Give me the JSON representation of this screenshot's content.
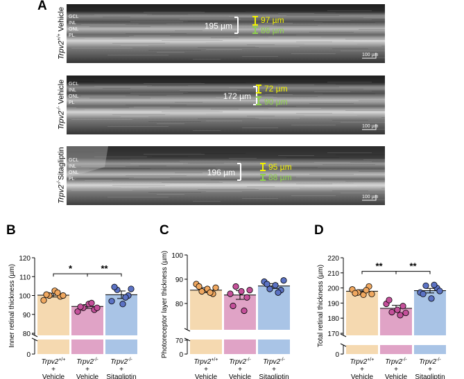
{
  "figure": {
    "panel_a_label": "A",
    "panels": [
      {
        "label_prefix": "Trpv2",
        "label_sup": "+/+",
        "label_suffix": " Vehicle",
        "layers": [
          "GCL",
          "INL",
          "ONL",
          "PL"
        ],
        "total": "195 µm",
        "inner": "97 µm",
        "outer": "86 µm",
        "scale": "100 µm"
      },
      {
        "label_prefix": "Trpv2",
        "label_sup": "-/-",
        "label_suffix": " Vehicle",
        "layers": [
          "GCL",
          "INL",
          "ONL",
          "PL"
        ],
        "total": "172 µm",
        "inner": "72 µm",
        "outer": "90 µm",
        "scale": "100 µm"
      },
      {
        "label_prefix": "Trpv2",
        "label_sup": "-/-",
        "label_suffix": "Sitagliptin",
        "layers": [
          "GCL",
          "INL",
          "ONL",
          "PL"
        ],
        "total": "196 µm",
        "inner": "95 µm",
        "outer": "88 µm",
        "scale": "100 µm"
      }
    ],
    "colors": {
      "inner_bar": "#f2f200",
      "outer_bar": "#8fd14f",
      "vehicle_wt": "#f5d9b0",
      "vehicle_ko": "#e0a3c6",
      "sitagliptin": "#a9c4e6",
      "dot_wt": "#f0a860",
      "dot_ko": "#c4509a",
      "dot_sita": "#5b72c4"
    }
  },
  "chart_data": [
    {
      "panel": "B",
      "type": "bar",
      "ylabel": "Inner retinal thickness (µm)",
      "yticks_upper": [
        "80",
        "90",
        "100",
        "110",
        "120"
      ],
      "ytick_lower": "0",
      "ylim_upper": [
        80,
        120
      ],
      "categories": [
        {
          "name": "Trpv2",
          "sup": "+/+",
          "line2": "+",
          "line3": "Vehicle"
        },
        {
          "name": "Trpv2",
          "sup": "-/-",
          "line2": "+",
          "line3": "Vehicle"
        },
        {
          "name": "Trpv2",
          "sup": "-/-",
          "line2": "+",
          "line3": "Sitagliptin"
        }
      ],
      "values": [
        100.2,
        94.2,
        100.4
      ],
      "sem": [
        1.0,
        1.0,
        2.0
      ],
      "points": [
        [
          97.5,
          100,
          102.5,
          99.5,
          100.5,
          101.5,
          100
        ],
        [
          91.5,
          93.5,
          95.5,
          92.5,
          94,
          96,
          93.5
        ],
        [
          97,
          103,
          95.5,
          100,
          104.5,
          99,
          103.5
        ]
      ],
      "significance": [
        {
          "from": 0,
          "to": 1,
          "label": "*",
          "y": 111.5
        },
        {
          "from": 1,
          "to": 2,
          "label": "**",
          "y": 111.5
        }
      ]
    },
    {
      "panel": "C",
      "type": "bar",
      "ylabel": "Photoreceptor layer thickness (µm)",
      "yticks_upper": [
        "80",
        "90",
        "100"
      ],
      "yticks_lower": [
        "0",
        "70"
      ],
      "ylim_upper": [
        70,
        100
      ],
      "categories": [
        {
          "name": "Trpv2",
          "sup": "+/+",
          "line2": "+",
          "line3": "Vehicle"
        },
        {
          "name": "Trpv2",
          "sup": "-/-",
          "line2": "+",
          "line3": "Vehicle"
        },
        {
          "name": "Trpv2",
          "sup": "-/-",
          "line2": "+",
          "line3": "Sitagliptin"
        }
      ],
      "values": [
        85.5,
        83.5,
        87.2
      ],
      "sem": [
        1.0,
        1.8,
        1.0
      ],
      "points": [
        [
          88,
          85,
          86,
          84,
          87,
          84.5,
          86.5
        ],
        [
          84,
          87,
          85,
          82.5,
          79,
          77,
          85.5
        ],
        [
          89,
          86,
          87.5,
          85.5,
          88,
          84.5,
          89.5
        ]
      ],
      "significance": []
    },
    {
      "panel": "D",
      "type": "bar",
      "ylabel": "Total retinal thickness (µm)",
      "yticks_upper": [
        "170",
        "180",
        "190",
        "200",
        "210",
        "220"
      ],
      "ytick_lower": "0",
      "ylim_upper": [
        170,
        220
      ],
      "categories": [
        {
          "name": "Trpv2",
          "sup": "+/+",
          "line2": "+",
          "line3": "Vehicle"
        },
        {
          "name": "Trpv2",
          "sup": "-/-",
          "line2": "+",
          "line3": "Vehicle"
        },
        {
          "name": "Trpv2",
          "sup": "-/-",
          "line2": "+",
          "line3": "Sitagliptin"
        }
      ],
      "values": [
        197.8,
        186.5,
        198.2
      ],
      "sem": [
        1.0,
        2.0,
        1.5
      ],
      "points": [
        [
          199,
          197,
          195.5,
          201,
          196.5,
          198.5,
          196
        ],
        [
          189.5,
          184,
          185.5,
          188,
          192,
          182,
          183.5
        ],
        [
          197,
          201.5,
          193,
          200,
          196,
          202,
          198
        ]
      ],
      "significance": [
        {
          "from": 0,
          "to": 1,
          "label": "**",
          "y": 211
        },
        {
          "from": 1,
          "to": 2,
          "label": "**",
          "y": 211
        }
      ]
    }
  ],
  "panel_labels": {
    "B": "B",
    "C": "C",
    "D": "D"
  }
}
